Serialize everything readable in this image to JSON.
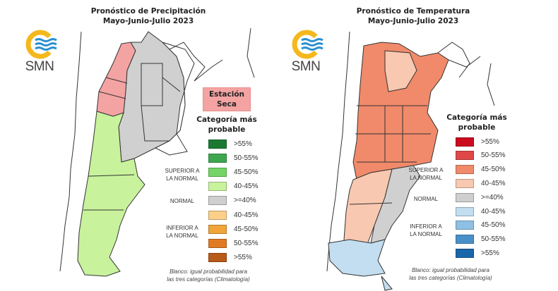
{
  "precipitation": {
    "title_line1": "Pronóstico de Precipitación",
    "title_line2": "Mayo-Junio-Julio 2023",
    "logo_text": "SMN",
    "dry_season_label_line1": "Estación",
    "dry_season_label_line2": "Seca",
    "dry_season_color": "#f4a3a3",
    "legend_title_line1": "Categoría más",
    "legend_title_line2": "probable",
    "legend": [
      {
        "label": ">55%",
        "color": "#1a7a34"
      },
      {
        "label": "50-55%",
        "color": "#3fa650"
      },
      {
        "label": "45-50%",
        "color": "#74d467"
      },
      {
        "label": "40-45%",
        "color": "#c8f29c"
      },
      {
        "label": ">=40%",
        "color": "#cfcfcf"
      },
      {
        "label": "40-45%",
        "color": "#fdd089"
      },
      {
        "label": "45-50%",
        "color": "#f0a43a"
      },
      {
        "label": "50-55%",
        "color": "#e07a22"
      },
      {
        "label": ">55%",
        "color": "#b85a18"
      }
    ],
    "category_above_line1": "SUPERIOR A",
    "category_above_line2": "LA NORMAL",
    "category_normal": "NORMAL",
    "category_below_line1": "INFERIOR A",
    "category_below_line2": "LA NORMAL",
    "note_line1": "Blanco: igual probabilidad para",
    "note_line2": "las tres categorías (Climatología)"
  },
  "temperature": {
    "title_line1": "Pronóstico de Temperatura",
    "title_line2": "Mayo-Junio-Julio 2023",
    "logo_text": "SMN",
    "legend_title_line1": "Categoría más",
    "legend_title_line2": "probable",
    "legend": [
      {
        "label": ">55%",
        "color": "#cc0a1e"
      },
      {
        "label": "50-55%",
        "color": "#e04848"
      },
      {
        "label": "45-50%",
        "color": "#f08a6a"
      },
      {
        "label": "40-45%",
        "color": "#f8c8b0"
      },
      {
        "label": ">=40%",
        "color": "#cfcfcf"
      },
      {
        "label": "40-45%",
        "color": "#c2def0"
      },
      {
        "label": "45-50%",
        "color": "#8ec0e4"
      },
      {
        "label": "50-55%",
        "color": "#4a90c8"
      },
      {
        "label": ">55%",
        "color": "#1a66aa"
      }
    ],
    "category_above_line1": "SUPERIOR A",
    "category_above_line2": "LA NORMAL",
    "category_normal": "NORMAL",
    "category_below_line1": "INFERIOR A",
    "category_below_line2": "LA NORMAL",
    "note_line1": "Blanco: igual probabilidad para",
    "note_line2": "las tres categorías (Climatología)"
  }
}
